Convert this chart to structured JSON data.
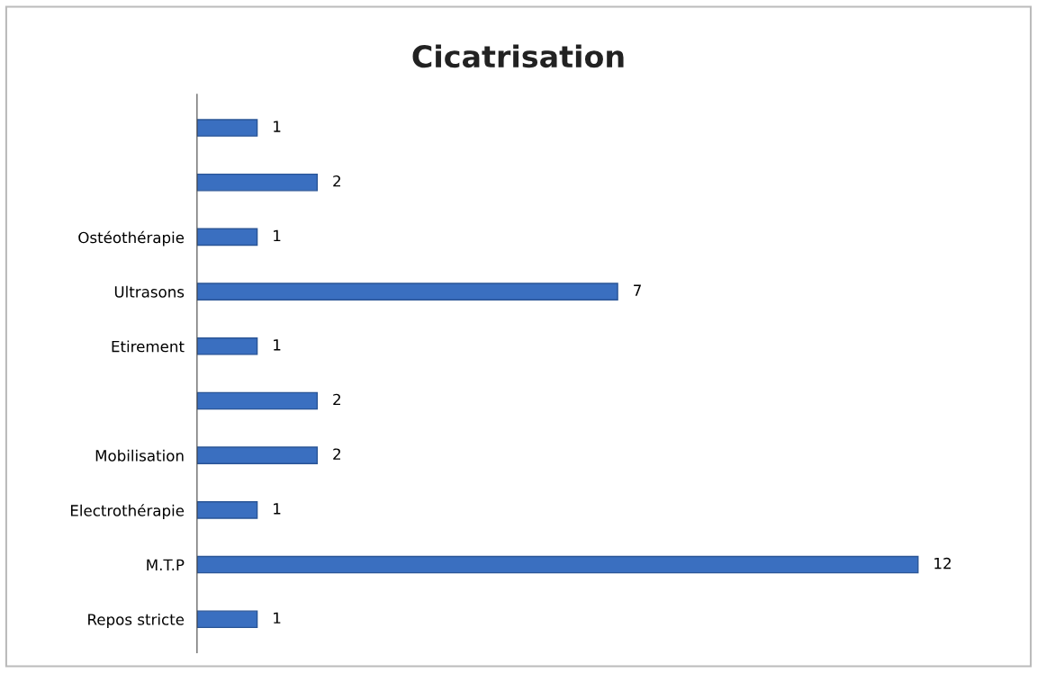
{
  "chart_data": {
    "type": "bar",
    "orientation": "horizontal",
    "title": "Cicatrisation",
    "categories": [
      null,
      null,
      "Ostéothérapie",
      "Ultrasons",
      "Etirement",
      null,
      "Mobilisation",
      "Electrothérapie",
      "M.T.P",
      "Repos stricte"
    ],
    "values": [
      1,
      2,
      1,
      7,
      1,
      2,
      2,
      1,
      12,
      1
    ],
    "color": "#3a6fc0",
    "data_labels": true,
    "grid": false,
    "legend": false
  }
}
